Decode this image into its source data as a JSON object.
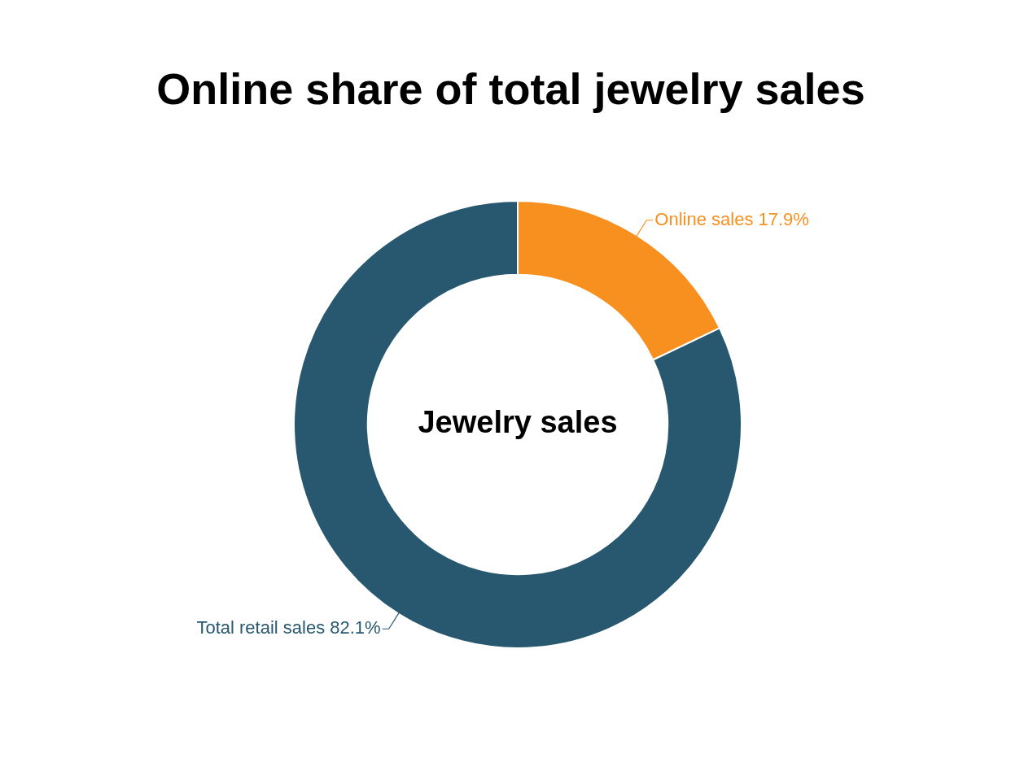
{
  "chart_data": {
    "type": "donut",
    "title": "Online share of total jewelry sales",
    "categories": [
      "Online sales",
      "Total retail sales"
    ],
    "values": [
      17.9,
      82.1
    ],
    "value_labels": [
      "17.9%",
      "82.1%"
    ],
    "colors": [
      "#f7901e",
      "#27586f"
    ],
    "annotations": [
      "Jewelry sales"
    ],
    "legend": false
  }
}
